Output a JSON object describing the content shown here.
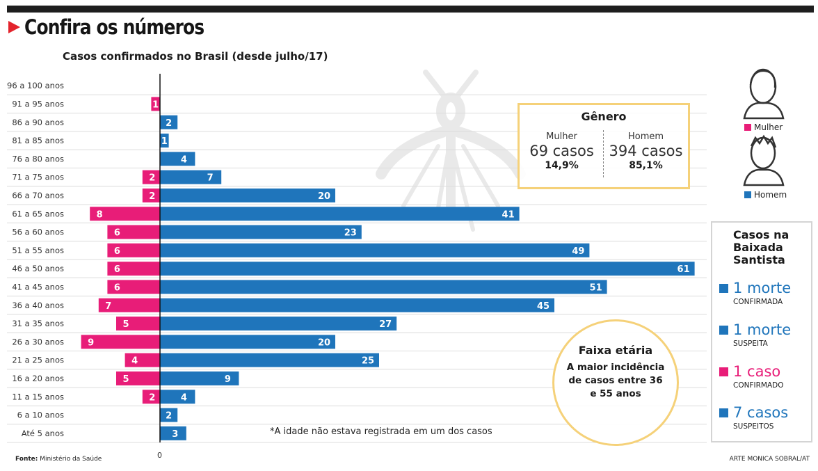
{
  "header": {
    "title": "Confira os números"
  },
  "colors": {
    "women": "#e81d78",
    "men": "#1f75bb",
    "accent_box": "#f5d179",
    "title_triangle": "#e3232c"
  },
  "icons": {
    "woman": "woman-silhouette-icon",
    "man": "man-silhouette-icon",
    "watermark": "mosquito-watermark-icon"
  },
  "chart_data": {
    "type": "bar",
    "orientation": "horizontal-diverging",
    "title": "Casos confirmados no Brasil (desde julho/17)",
    "categories": [
      "96 a 100 anos",
      "91 a 95 anos",
      "86 a 90 anos",
      "81 a 85 anos",
      "76 a 80 anos",
      "71 a 75 anos",
      "66 a 70 anos",
      "61 a 65 anos",
      "56 a 60 anos",
      "51 a 55 anos",
      "46 a 50 anos",
      "41 a 45 anos",
      "36 a 40 anos",
      "31 a 35 anos",
      "26 a 30 anos",
      "21 a 25 anos",
      "16 a 20 anos",
      "11 a 15 anos",
      "6 a 10 anos",
      "Até 5 anos"
    ],
    "series": [
      {
        "name": "Mulher",
        "values": [
          0,
          1,
          0,
          0,
          0,
          2,
          2,
          8,
          6,
          6,
          6,
          6,
          7,
          5,
          9,
          4,
          5,
          2,
          0,
          0
        ]
      },
      {
        "name": "Homem",
        "values": [
          0,
          0,
          2,
          1,
          4,
          7,
          20,
          41,
          23,
          49,
          61,
          51,
          45,
          27,
          20,
          25,
          9,
          4,
          2,
          3
        ]
      }
    ],
    "zero_label": "0",
    "legend": [
      "Mulher",
      "Homem"
    ],
    "legend_placement": "right",
    "grid": true,
    "xlim": [
      -9,
      61
    ]
  },
  "legend": {
    "women_label": "Mulher",
    "men_label": "Homem"
  },
  "gender_box": {
    "title": "Gênero",
    "women": {
      "label": "Mulher",
      "count": "69 casos",
      "percent": "14,9%"
    },
    "men": {
      "label": "Homem",
      "count": "394 casos",
      "percent": "85,1%"
    }
  },
  "age_callout": {
    "title": "Faixa etária",
    "text": "A maior incidência de casos entre 36 e 55 anos"
  },
  "baixada": {
    "title": "Casos na Baixada Santista",
    "items": [
      {
        "value": "1 morte",
        "label": "CONFIRMADA",
        "color": "#1f75bb"
      },
      {
        "value": "1 morte",
        "label": "SUSPEITA",
        "color": "#1f75bb"
      },
      {
        "value": "1 caso",
        "label": "CONFIRMADO",
        "color": "#e81d78"
      },
      {
        "value": "7 casos",
        "label": "SUSPEITOS",
        "color": "#1f75bb"
      }
    ]
  },
  "note": "*A idade não estava registrada em um dos casos",
  "footer": {
    "source_label": "Fonte:",
    "source": "Ministério da Saúde",
    "credit": "ARTE MONICA SOBRAL/AT"
  }
}
